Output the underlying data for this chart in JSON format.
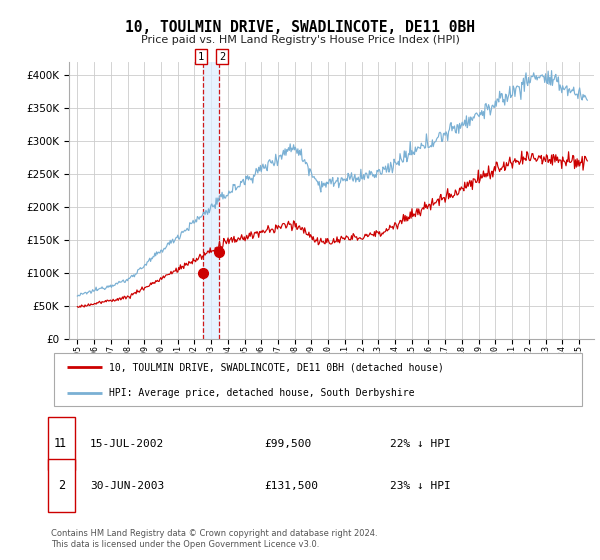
{
  "title": "10, TOULMIN DRIVE, SWADLINCOTE, DE11 0BH",
  "subtitle": "Price paid vs. HM Land Registry's House Price Index (HPI)",
  "legend_line1": "10, TOULMIN DRIVE, SWADLINCOTE, DE11 0BH (detached house)",
  "legend_line2": "HPI: Average price, detached house, South Derbyshire",
  "transaction1_date": "15-JUL-2002",
  "transaction1_price": "£99,500",
  "transaction1_hpi": "22% ↓ HPI",
  "transaction1_year": 2002.54,
  "transaction1_value": 99500,
  "transaction2_date": "30-JUN-2003",
  "transaction2_price": "£131,500",
  "transaction2_hpi": "23% ↓ HPI",
  "transaction2_year": 2003.5,
  "transaction2_value": 131500,
  "hpi_color": "#7ab0d4",
  "price_color": "#cc0000",
  "vline_color": "#cc0000",
  "shade_color": "#ddeeff",
  "footer": "Contains HM Land Registry data © Crown copyright and database right 2024.\nThis data is licensed under the Open Government Licence v3.0.",
  "ylim_min": 0,
  "ylim_max": 420000,
  "yticks": [
    0,
    50000,
    100000,
    150000,
    200000,
    250000,
    300000,
    350000,
    400000
  ],
  "xlim_min": 1994.5,
  "xlim_max": 2025.9,
  "xtick_start": 1995,
  "xtick_end": 2025
}
